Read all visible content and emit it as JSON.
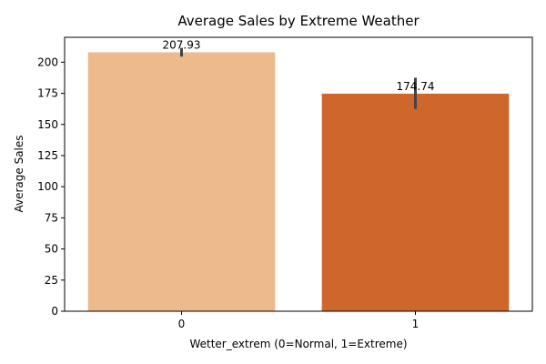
{
  "chart_data": {
    "type": "bar",
    "title": "Average Sales by Extreme Weather",
    "xlabel": "Wetter_extrem (0=Normal, 1=Extreme)",
    "ylabel": "Average Sales",
    "categories": [
      "0",
      "1"
    ],
    "values": [
      207.93,
      174.74
    ],
    "data_labels": [
      "207.93",
      "174.74"
    ],
    "error_bars": [
      [
        204.5,
        211.5
      ],
      [
        162.5,
        187.5
      ]
    ],
    "ylim": [
      0,
      220
    ],
    "yticks": [
      0,
      25,
      50,
      75,
      100,
      125,
      150,
      175,
      200
    ],
    "ytick_labels": [
      "0",
      "25",
      "50",
      "75",
      "100",
      "125",
      "150",
      "175",
      "200"
    ],
    "colors": [
      "#edba8b",
      "#cf662b"
    ],
    "errorbar_color": "#444444",
    "grid": false,
    "legend": "none"
  }
}
